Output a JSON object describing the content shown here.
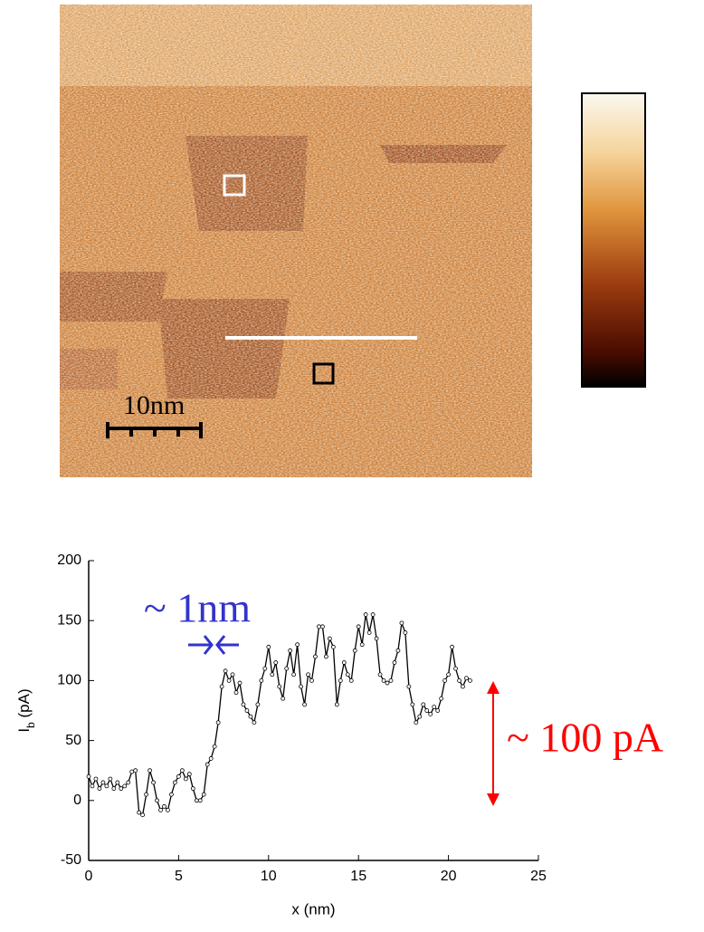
{
  "image": {
    "scale_bar": "10nm"
  },
  "chart_data": {
    "type": "line",
    "x": [
      0,
      0.2,
      0.4,
      0.6,
      0.8,
      1.0,
      1.2,
      1.4,
      1.6,
      1.8,
      2.0,
      2.2,
      2.4,
      2.6,
      2.8,
      3.0,
      3.2,
      3.4,
      3.6,
      3.8,
      4.0,
      4.2,
      4.4,
      4.6,
      4.8,
      5.0,
      5.2,
      5.4,
      5.6,
      5.8,
      6.0,
      6.2,
      6.4,
      6.6,
      6.8,
      7.0,
      7.2,
      7.4,
      7.6,
      7.8,
      8.0,
      8.2,
      8.4,
      8.6,
      8.8,
      9.0,
      9.2,
      9.4,
      9.6,
      9.8,
      10.0,
      10.2,
      10.4,
      10.6,
      10.8,
      11.0,
      11.2,
      11.4,
      11.6,
      11.8,
      12.0,
      12.2,
      12.4,
      12.6,
      12.8,
      13.0,
      13.2,
      13.4,
      13.6,
      13.8,
      14.0,
      14.2,
      14.4,
      14.6,
      14.8,
      15.0,
      15.2,
      15.4,
      15.6,
      15.8,
      16.0,
      16.2,
      16.4,
      16.6,
      16.8,
      17.0,
      17.2,
      17.4,
      17.6,
      17.8,
      18.0,
      18.2,
      18.4,
      18.6,
      18.8,
      19.0,
      19.2,
      19.4,
      19.6,
      19.8,
      20.0,
      20.2,
      20.4,
      20.6,
      20.8,
      21.0,
      21.2
    ],
    "values": [
      20,
      12,
      18,
      10,
      15,
      12,
      18,
      10,
      15,
      10,
      12,
      15,
      24,
      25,
      -10,
      -12,
      5,
      25,
      15,
      0,
      -8,
      -5,
      -8,
      5,
      15,
      20,
      25,
      18,
      22,
      10,
      0,
      0,
      5,
      30,
      35,
      45,
      65,
      95,
      108,
      100,
      105,
      90,
      98,
      80,
      75,
      70,
      65,
      80,
      100,
      110,
      128,
      105,
      115,
      95,
      85,
      110,
      125,
      105,
      130,
      95,
      80,
      105,
      100,
      120,
      145,
      145,
      120,
      135,
      128,
      80,
      100,
      115,
      105,
      100,
      125,
      145,
      130,
      155,
      140,
      155,
      135,
      105,
      100,
      98,
      100,
      115,
      125,
      148,
      140,
      95,
      80,
      65,
      70,
      80,
      75,
      72,
      78,
      75,
      85,
      100,
      105,
      128,
      110,
      100,
      95,
      102,
      100
    ],
    "color": "#000000",
    "xlim": [
      0,
      25
    ],
    "xticks": [
      0,
      5,
      10,
      15,
      20,
      25
    ],
    "ylim": [
      -50,
      200
    ],
    "yticks": [
      -50,
      0,
      50,
      100,
      150,
      200
    ],
    "xlabel": "x (nm)",
    "ylabel": [
      "I",
      "b",
      " (pA)"
    ],
    "annotations": [
      {
        "text": "~ 1nm",
        "color": "#3333cc"
      },
      {
        "text": "~ 100 pA",
        "color": "#ff0000"
      }
    ]
  }
}
